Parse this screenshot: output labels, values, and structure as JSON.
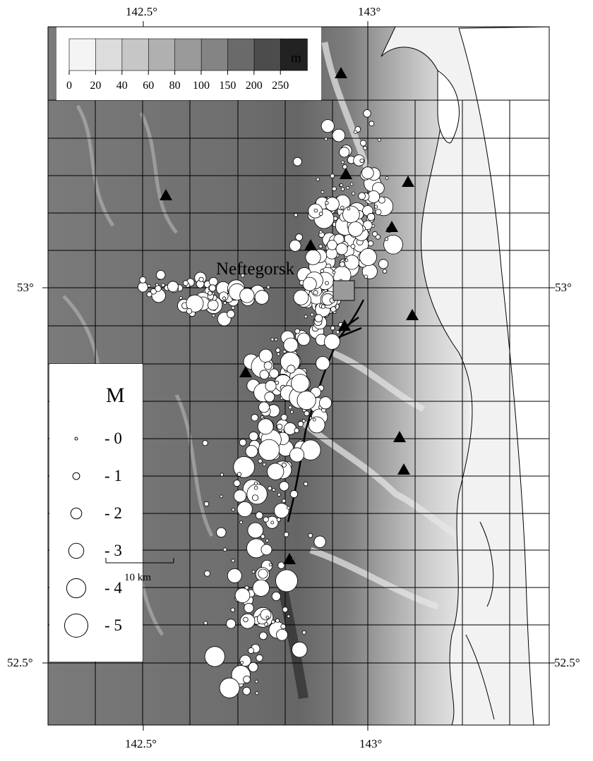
{
  "map": {
    "place_label": "Neftegorsk",
    "lon_labels_top": [
      "142.5°",
      "143°"
    ],
    "lon_labels_bottom": [
      "142.5°",
      "143°"
    ],
    "lat_labels_left": [
      "53°",
      "52.5°"
    ],
    "lat_labels_right": [
      "53°",
      "52.5°"
    ],
    "scale_bar_label": "10 km"
  },
  "elevation_legend": {
    "unit": "m",
    "ticks": [
      "0",
      "20",
      "40",
      "60",
      "80",
      "100",
      "150",
      "200",
      "250"
    ],
    "colors": [
      "#f4f4f4",
      "#dcdcdc",
      "#c6c6c6",
      "#b0b0b0",
      "#9a9a9a",
      "#848484",
      "#6a6a6a",
      "#4c4c4c",
      "#222222"
    ]
  },
  "magnitude_legend": {
    "title": "M",
    "entries": [
      {
        "label": "- 0",
        "magnitude": 0
      },
      {
        "label": "- 1",
        "magnitude": 1
      },
      {
        "label": "- 2",
        "magnitude": 2
      },
      {
        "label": "- 3",
        "magnitude": 3
      },
      {
        "label": "- 4",
        "magnitude": 4
      },
      {
        "label": "- 5",
        "magnitude": 5
      }
    ]
  },
  "symbols": {
    "earthquake": "white-circle-icon",
    "station": "black-triangle-icon",
    "fault": "black-line"
  }
}
